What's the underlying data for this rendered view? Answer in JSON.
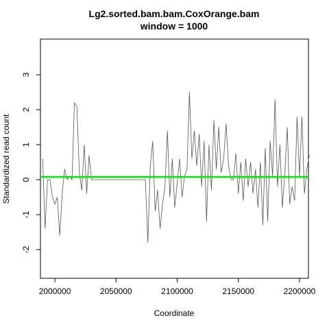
{
  "chart_data": {
    "type": "line",
    "title": "Lg2.sorted.bam.bam.CoxOrange.bam",
    "subtitle": "window = 1000",
    "xlabel": "Coordinate",
    "ylabel": "Standardized read count",
    "xlim": [
      1988200,
      2207300
    ],
    "ylim": [
      -2.82,
      4.02
    ],
    "xticks": [
      2000000,
      2050000,
      2100000,
      2150000,
      2200000
    ],
    "yticks": [
      -2,
      -1,
      0,
      1,
      2,
      3
    ],
    "reference_line": {
      "value": 0.08,
      "color": "#00ee00"
    },
    "series": [
      {
        "color": "#555555",
        "x": [
          1990000,
          1992000,
          1994000,
          1996000,
          1998000,
          2000000,
          2002000,
          2004000,
          2006000,
          2008000,
          2010000,
          2012000,
          2014000,
          2016000,
          2018000,
          2020000,
          2022000,
          2024000,
          2026000,
          2028000,
          2030000,
          2074000,
          2076000,
          2078000,
          2080000,
          2082000,
          2084000,
          2086000,
          2088000,
          2090000,
          2092000,
          2094000,
          2096000,
          2098000,
          2100000,
          2102000,
          2104000,
          2106000,
          2108000,
          2110000,
          2112000,
          2114000,
          2116000,
          2118000,
          2120000,
          2122000,
          2124000,
          2126000,
          2128000,
          2130000,
          2132000,
          2134000,
          2136000,
          2138000,
          2140000,
          2142000,
          2144000,
          2146000,
          2148000,
          2150000,
          2152000,
          2154000,
          2156000,
          2158000,
          2160000,
          2162000,
          2164000,
          2166000,
          2168000,
          2170000,
          2172000,
          2174000,
          2176000,
          2178000,
          2180000,
          2182000,
          2184000,
          2186000,
          2188000,
          2190000,
          2192000,
          2194000,
          2196000,
          2198000,
          2200000,
          2202000,
          2204000,
          2206000,
          2208000
        ],
        "values": [
          0.6,
          -1.4,
          0,
          0,
          -0.5,
          -0.7,
          -0.5,
          -1.6,
          -0.4,
          0.3,
          0.0,
          0.1,
          0,
          2.2,
          2.1,
          0.2,
          -0.3,
          1.0,
          -0.4,
          0.7,
          0,
          0,
          -1.8,
          0.4,
          1.1,
          -0.9,
          -0.3,
          -1.4,
          -0.7,
          -0.2,
          1.4,
          -0.5,
          0.6,
          -0.8,
          -0.1,
          0.6,
          -0.5,
          0.1,
          0.3,
          2.5,
          0.6,
          1.4,
          0.4,
          1.3,
          -0.2,
          1.1,
          -1.2,
          1.0,
          -0.3,
          1.7,
          0.3,
          1.5,
          0.2,
          0.6,
          1.6,
          0.4,
          0.0,
          0.0,
          0.75,
          -0.4,
          0.5,
          -0.6,
          0.6,
          -0.2,
          0.5,
          -0.4,
          0.3,
          -0.8,
          0.5,
          -1.3,
          0.9,
          -1.2,
          1.1,
          0.1,
          2.3,
          -0.2,
          1.0,
          -0.8,
          0.2,
          1.5,
          -0.7,
          -0.2,
          -0.6,
          1.8,
          0.1,
          1.8,
          -0.4,
          0.3,
          0.7
        ]
      }
    ]
  }
}
